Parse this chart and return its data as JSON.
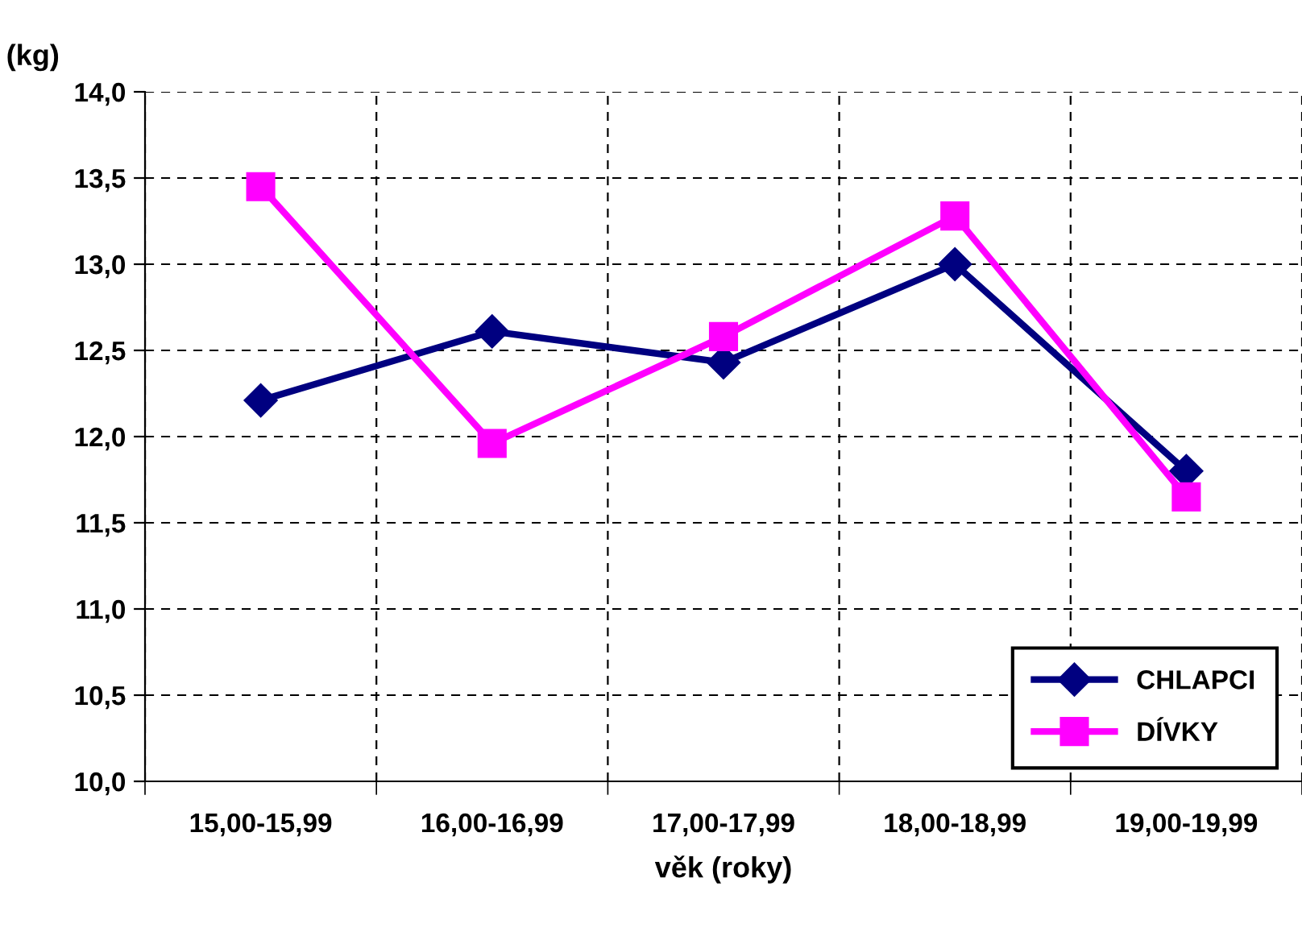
{
  "chart_data": {
    "type": "line",
    "ylabel": "(kg)",
    "xlabel": "věk (roky)",
    "categories": [
      "15,00-15,99",
      "16,00-16,99",
      "17,00-17,99",
      "18,00-18,99",
      "19,00-19,99"
    ],
    "series": [
      {
        "name": "CHLAPCI",
        "color": "#000080",
        "marker": "diamond",
        "values": [
          12.21,
          12.61,
          12.43,
          13.0,
          11.8
        ]
      },
      {
        "name": "DÍVKY",
        "color": "#ff00ff",
        "marker": "square",
        "values": [
          13.45,
          11.96,
          12.58,
          13.28,
          11.65
        ]
      }
    ],
    "ylim": [
      10,
      14
    ],
    "yticks": [
      {
        "value": 10,
        "label": "10,0"
      },
      {
        "value": 10.5,
        "label": "10,5"
      },
      {
        "value": 11,
        "label": "11,0"
      },
      {
        "value": 11.5,
        "label": "11,5"
      },
      {
        "value": 12,
        "label": "12,0"
      },
      {
        "value": 12.5,
        "label": "12,5"
      },
      {
        "value": 13,
        "label": "13,0"
      },
      {
        "value": 13.5,
        "label": "13,5"
      },
      {
        "value": 14,
        "label": "14,0"
      }
    ],
    "grid": true,
    "legend": "bottom right",
    "line_style": "solid"
  }
}
